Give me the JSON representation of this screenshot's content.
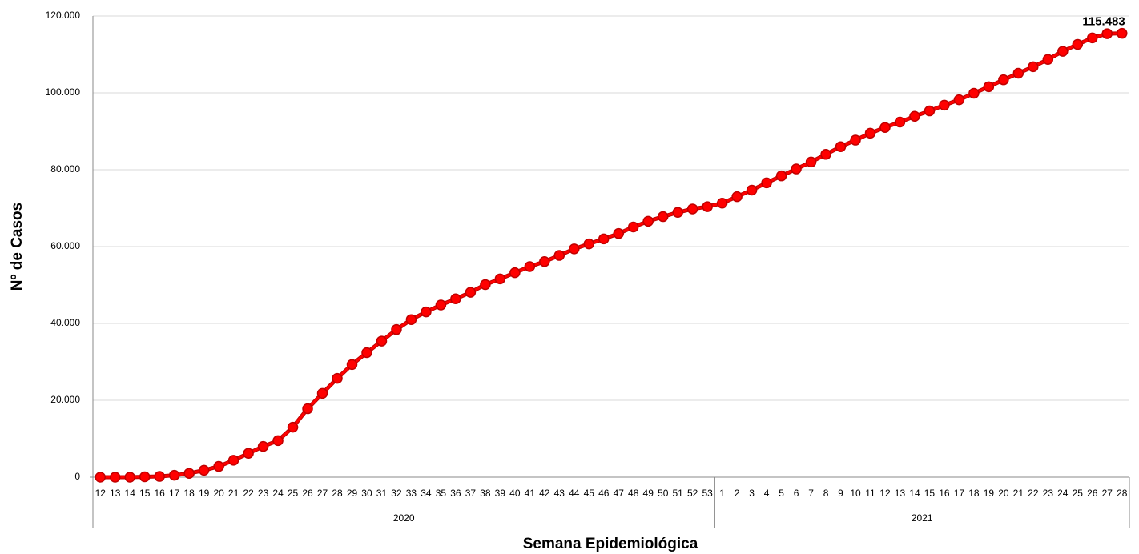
{
  "chart_data": {
    "type": "line",
    "y_label": "Nº de Casos",
    "x_label": "Semana Epidemiológica",
    "groups": [
      {
        "name": "2020",
        "categories": [
          12,
          13,
          14,
          15,
          16,
          17,
          18,
          19,
          20,
          21,
          22,
          23,
          24,
          25,
          26,
          27,
          28,
          29,
          30,
          31,
          32,
          33,
          34,
          35,
          36,
          37,
          38,
          39,
          40,
          41,
          42,
          43,
          44,
          45,
          46,
          47,
          48,
          49,
          50,
          51,
          52,
          53
        ]
      },
      {
        "name": "2021",
        "categories": [
          1,
          2,
          3,
          4,
          5,
          6,
          7,
          8,
          9,
          10,
          11,
          12,
          13,
          14,
          15,
          16,
          17,
          18,
          19,
          20,
          21,
          22,
          23,
          24,
          25,
          26,
          27,
          28
        ]
      }
    ],
    "values": [
      0,
      0,
      0,
      100,
      200,
      500,
      1000,
      1800,
      2800,
      4400,
      6200,
      8000,
      9500,
      13000,
      17800,
      21800,
      25700,
      29300,
      32400,
      35400,
      38400,
      41000,
      43000,
      44800,
      46400,
      48100,
      50100,
      51600,
      53200,
      54800,
      56100,
      57700,
      59400,
      60700,
      62000,
      63400,
      65100,
      66600,
      67800,
      68900,
      69800,
      70400,
      71300,
      73000,
      74700,
      76600,
      78400,
      80200,
      82000,
      84000,
      86000,
      87700,
      89500,
      91000,
      92400,
      93900,
      95300,
      96800,
      98200,
      99900,
      101600,
      103400,
      105100,
      106800,
      108700,
      110800,
      112600,
      114300,
      115400,
      115483
    ],
    "value_labels": [
      null,
      null,
      null,
      null,
      null,
      null,
      null,
      null,
      null,
      null,
      null,
      null,
      null,
      null,
      null,
      null,
      null,
      null,
      null,
      null,
      null,
      null,
      null,
      null,
      null,
      null,
      null,
      null,
      null,
      null,
      null,
      null,
      null,
      null,
      null,
      null,
      null,
      null,
      null,
      null,
      null,
      null,
      null,
      null,
      null,
      null,
      null,
      null,
      null,
      null,
      null,
      null,
      null,
      null,
      null,
      null,
      null,
      null,
      null,
      null,
      null,
      null,
      null,
      null,
      null,
      null,
      null,
      null,
      null,
      "115.483"
    ],
    "color": "#ff0000",
    "ylim": [
      0,
      120000
    ],
    "yticks": [
      0,
      {
        "value": 20000,
        "label": "20.000"
      },
      {
        "value": 40000,
        "label": "40.000"
      },
      {
        "value": 60000,
        "label": "60.000"
      },
      {
        "value": 80000,
        "label": "80.000"
      },
      {
        "value": 100000,
        "label": "100.000"
      },
      {
        "value": 120000,
        "label": "120.000"
      }
    ],
    "grid": true
  }
}
